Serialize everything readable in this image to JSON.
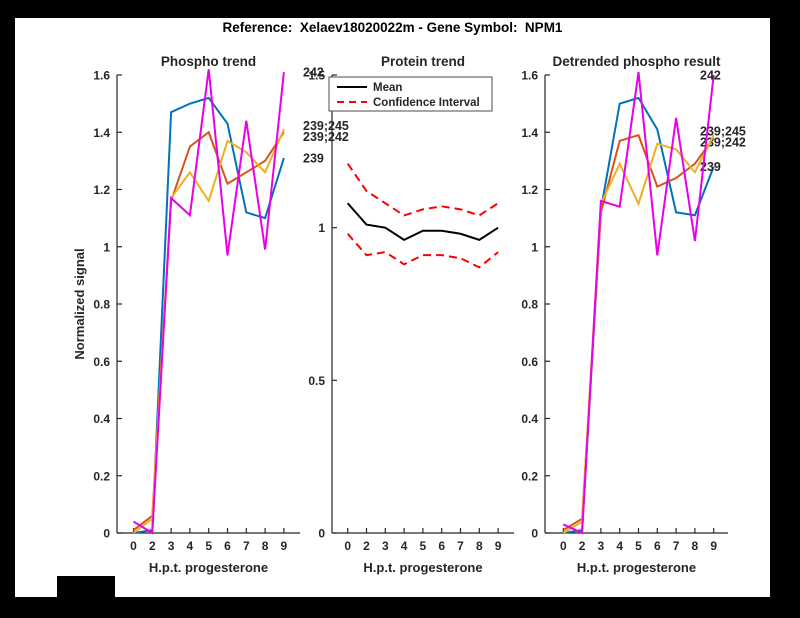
{
  "figure": {
    "title": "Reference:  Xelaev18020022m - Gene Symbol:  NPM1"
  },
  "colors": {
    "blue": "#0072BD",
    "orange": "#D95319",
    "yellow": "#EDB120",
    "magenta": "#E800E8",
    "mean": "#000000",
    "ci": "#FF0000",
    "axis": "#262626"
  },
  "chart_data": [
    {
      "type": "line",
      "title": "Phospho trend",
      "xlabel": "H.p.t. progesterone",
      "ylabel": "Normalized signal",
      "grid": false,
      "x_tick_labels": [
        "0",
        "2",
        "3",
        "4",
        "5",
        "6",
        "7",
        "8",
        "9"
      ],
      "ylim": [
        0,
        1.6
      ],
      "y_tick_labels": [
        "0",
        "0.2",
        "0.4",
        "0.6",
        "0.8",
        "1",
        "1.2",
        "1.4",
        "1.6"
      ],
      "series": [
        {
          "name": "239",
          "color_key": "blue",
          "end_label": "239",
          "values": [
            0.0,
            0.01,
            1.47,
            1.5,
            1.52,
            1.43,
            1.12,
            1.1,
            1.31
          ]
        },
        {
          "name": "239;242",
          "color_key": "orange",
          "end_label": "239;242",
          "label_dy": 4,
          "values": [
            0.01,
            0.06,
            1.16,
            1.35,
            1.4,
            1.22,
            1.26,
            1.3,
            1.4
          ]
        },
        {
          "name": "239;245",
          "color_key": "yellow",
          "end_label": "239;245",
          "label_dy": -4,
          "values": [
            0.0,
            0.05,
            1.17,
            1.26,
            1.16,
            1.37,
            1.33,
            1.26,
            1.41
          ]
        },
        {
          "name": "242",
          "color_key": "magenta",
          "end_label": "242",
          "values": [
            0.04,
            0.0,
            1.17,
            1.11,
            1.62,
            0.97,
            1.44,
            0.99,
            1.61
          ]
        }
      ]
    },
    {
      "type": "line",
      "title": "Protein trend",
      "xlabel": "H.p.t. progesterone",
      "grid": false,
      "x_tick_labels": [
        "0",
        "2",
        "3",
        "4",
        "5",
        "6",
        "7",
        "8",
        "9"
      ],
      "ylim": [
        0,
        1.5
      ],
      "y_tick_labels": [
        "0",
        "0.5",
        "1",
        "1.5"
      ],
      "legend": {
        "position": "northwest",
        "entries": [
          "Mean",
          "Confidence Interval"
        ]
      },
      "series": [
        {
          "name": "Mean",
          "color_key": "mean",
          "values": [
            1.08,
            1.01,
            1.0,
            0.96,
            0.99,
            0.99,
            0.98,
            0.96,
            1.0
          ]
        },
        {
          "name": "Confidence Interval",
          "color_key": "ci",
          "dashed": true,
          "values": [
            1.21,
            1.12,
            1.08,
            1.04,
            1.06,
            1.07,
            1.06,
            1.04,
            1.08
          ]
        },
        {
          "name": "Confidence Interval",
          "color_key": "ci",
          "dashed": true,
          "legend_skip": true,
          "values": [
            0.98,
            0.91,
            0.92,
            0.88,
            0.91,
            0.91,
            0.9,
            0.87,
            0.92
          ]
        }
      ]
    },
    {
      "type": "line",
      "title": "Detrended phospho result",
      "xlabel": "H.p.t. progesterone",
      "grid": false,
      "x_tick_labels": [
        "0",
        "2",
        "3",
        "4",
        "5",
        "6",
        "7",
        "8",
        "9"
      ],
      "ylim": [
        0,
        1.6
      ],
      "y_tick_labels": [
        "0",
        "0.2",
        "0.4",
        "0.6",
        "0.8",
        "1",
        "1.2",
        "1.4",
        "1.6"
      ],
      "series": [
        {
          "name": "239",
          "color_key": "blue",
          "end_label": "239",
          "values": [
            0.0,
            0.01,
            1.13,
            1.5,
            1.52,
            1.41,
            1.12,
            1.11,
            1.28
          ]
        },
        {
          "name": "239;242",
          "color_key": "orange",
          "end_label": "239;242",
          "label_dy": 4,
          "values": [
            0.01,
            0.05,
            1.12,
            1.37,
            1.39,
            1.21,
            1.24,
            1.29,
            1.38
          ]
        },
        {
          "name": "239;245",
          "color_key": "yellow",
          "end_label": "239;245",
          "label_dy": -4,
          "values": [
            0.0,
            0.04,
            1.15,
            1.29,
            1.15,
            1.36,
            1.34,
            1.26,
            1.39
          ]
        },
        {
          "name": "242",
          "color_key": "magenta",
          "end_label": "242",
          "values": [
            0.03,
            0.0,
            1.16,
            1.14,
            1.61,
            0.97,
            1.45,
            1.02,
            1.6
          ]
        }
      ]
    }
  ]
}
